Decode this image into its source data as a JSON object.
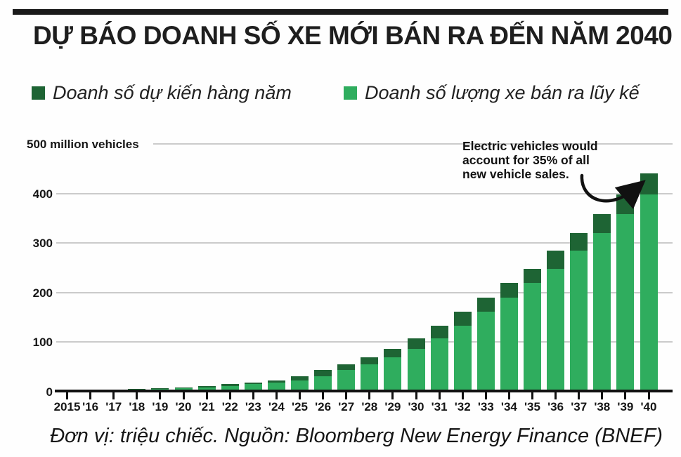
{
  "header": {
    "title": "DỰ BÁO DOANH SỐ XE MỚI BÁN RA ĐẾN NĂM 2040"
  },
  "legend": {
    "items": [
      {
        "label": "Doanh số dự kiến hàng năm",
        "color": "#1e6434"
      },
      {
        "label": "Doanh số lượng xe bán ra lũy kế",
        "color": "#2fad5e"
      }
    ]
  },
  "annotation": {
    "lines": [
      "Electric vehicles would",
      "account for 35% of all",
      "new vehicle sales."
    ]
  },
  "footer": {
    "caption": "Đơn vị: triệu chiếc.  Nguồn: Bloomberg New Energy Finance (BNEF)"
  },
  "colors": {
    "annual_dark_green": "#1e6434",
    "cumulative_light_green": "#2fad5e",
    "axis_black": "#111111",
    "gridline_gray": "#cbcbcb"
  },
  "chart_data": {
    "type": "bar",
    "stacked": true,
    "title": "DỰ BÁO DOANH SỐ XE MỚI BÁN RA ĐẾN NĂM 2040",
    "unit_note": "Đơn vị: triệu chiếc.",
    "source": "Bloomberg New Energy Finance (BNEF)",
    "categories": [
      "2015",
      "'16",
      "'17",
      "'18",
      "'19",
      "'20",
      "'21",
      "'22",
      "'23",
      "'24",
      "'25",
      "'26",
      "'27",
      "'28",
      "'29",
      "'30",
      "'31",
      "'32",
      "'33",
      "'34",
      "'35",
      "'36",
      "'37",
      "'38",
      "'39",
      "'40"
    ],
    "series": [
      {
        "name": "Doanh số dự kiến hàng năm",
        "role": "annual_sales_top_segment",
        "color": "#1e6434",
        "values": [
          0.5,
          1,
          1.5,
          2,
          2,
          2,
          3,
          3,
          4,
          4,
          8,
          13,
          11,
          14,
          18,
          21,
          25,
          28,
          29,
          29,
          29,
          37,
          35,
          38,
          40,
          42
        ]
      },
      {
        "name": "Doanh số lượng xe bán ra lũy kế",
        "role": "cumulative_sales_base_segment",
        "color": "#2fad5e",
        "values": [
          0,
          0.5,
          1.5,
          3,
          5,
          7,
          9,
          12,
          15,
          19,
          23,
          31,
          44,
          55,
          69,
          87,
          108,
          133,
          161,
          190,
          219,
          248,
          285,
          320,
          358,
          398
        ]
      }
    ],
    "totals": [
      0.5,
      1.5,
      3,
      5,
      7,
      9,
      12,
      15,
      19,
      23,
      31,
      44,
      55,
      69,
      87,
      108,
      133,
      161,
      190,
      219,
      248,
      285,
      320,
      358,
      398,
      440
    ],
    "ylabel_top": "500 million vehicles",
    "y_ticks": [
      {
        "value": 500,
        "label": "500 million vehicles"
      },
      {
        "value": 400,
        "label": "400"
      },
      {
        "value": 300,
        "label": "300"
      },
      {
        "value": 200,
        "label": "200"
      },
      {
        "value": 100,
        "label": "100"
      },
      {
        "value": 0,
        "label": "0"
      }
    ],
    "ylim": [
      0,
      500
    ],
    "grid": "horizontal",
    "legend_position": "top",
    "annotation": "Electric vehicles would account for 35% of all new vehicle sales."
  }
}
